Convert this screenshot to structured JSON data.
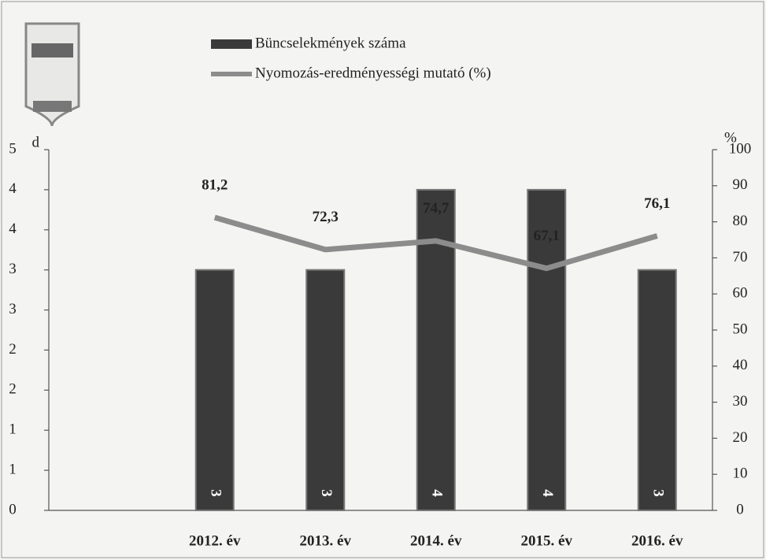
{
  "chart_data": {
    "type": "bar_line",
    "y_label": "d",
    "y2_label": "%",
    "categories": [
      null,
      "2012. év",
      "2013. év",
      "2014. év",
      "2015. év",
      "2016. év"
    ],
    "series": [
      {
        "name": "Büncselekmények száma",
        "type": "bar",
        "color": "#3a3a3a",
        "values": [
          null,
          3,
          3,
          4,
          4,
          3
        ]
      },
      {
        "name": "Nyomozás-eredményességi mutató (%)",
        "type": "line",
        "axis": "y2",
        "color": "#8c8c8c",
        "values": [
          null,
          81.2,
          72.3,
          74.7,
          67.1,
          76.1
        ],
        "value_labels": [
          null,
          "81,2",
          "72,3",
          "74,7",
          "67,1",
          "76,1"
        ]
      }
    ],
    "ylim": [
      0,
      4.5
    ],
    "yticks": [
      0,
      {
        "value": 0.5,
        "label": "1"
      },
      1,
      {
        "value": 1.5,
        "label": "2"
      },
      2,
      {
        "value": 2.5,
        "label": "3"
      },
      3,
      {
        "value": 3.5,
        "label": "4"
      },
      4,
      {
        "value": 4.5,
        "label": "5"
      }
    ],
    "y2lim": [
      0,
      100
    ],
    "y2ticks": [
      0,
      10,
      20,
      30,
      40,
      50,
      60,
      70,
      80,
      90,
      100
    ]
  }
}
